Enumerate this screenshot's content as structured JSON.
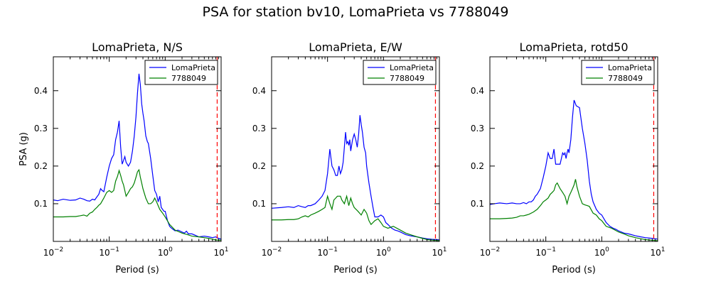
{
  "suptitle": "PSA for station bv10, LomaPrieta vs 7788049",
  "colors": {
    "s1": "#0000ff",
    "s2": "#008000",
    "marker": "#ff0000"
  },
  "chart_data": [
    {
      "type": "line",
      "title": "LomaPrieta, N/S",
      "xlabel": "Period (s)",
      "ylabel": "PSA (g)",
      "x_scale": "log",
      "xlim": [
        0.01,
        10
      ],
      "ylim": [
        0,
        0.49
      ],
      "xticks": [
        "10^-2",
        "10^-1",
        "10^0",
        "10^1"
      ],
      "yticks": [
        "0.1",
        "0.2",
        "0.3",
        "0.4"
      ],
      "vline": 8.5,
      "legend": "top-right",
      "series": [
        {
          "name": "LomaPrieta",
          "x": [
            0.01,
            0.012,
            0.015,
            0.02,
            0.025,
            0.03,
            0.035,
            0.04,
            0.045,
            0.05,
            0.055,
            0.06,
            0.065,
            0.07,
            0.075,
            0.08,
            0.09,
            0.1,
            0.11,
            0.12,
            0.13,
            0.14,
            0.15,
            0.16,
            0.17,
            0.18,
            0.19,
            0.2,
            0.22,
            0.24,
            0.26,
            0.28,
            0.3,
            0.32,
            0.34,
            0.36,
            0.38,
            0.4,
            0.42,
            0.45,
            0.48,
            0.5,
            0.55,
            0.6,
            0.65,
            0.7,
            0.75,
            0.8,
            0.85,
            0.9,
            0.95,
            1.0,
            1.1,
            1.2,
            1.3,
            1.5,
            1.7,
            2.0,
            2.2,
            2.4,
            2.6,
            3.0,
            3.5,
            4.0,
            5.0,
            6.0,
            7.0,
            8.0,
            9.0,
            10.0
          ],
          "y": [
            0.11,
            0.108,
            0.112,
            0.109,
            0.11,
            0.115,
            0.112,
            0.108,
            0.107,
            0.112,
            0.11,
            0.118,
            0.125,
            0.14,
            0.135,
            0.132,
            0.17,
            0.2,
            0.22,
            0.23,
            0.27,
            0.29,
            0.32,
            0.25,
            0.205,
            0.215,
            0.225,
            0.21,
            0.2,
            0.21,
            0.24,
            0.28,
            0.33,
            0.395,
            0.445,
            0.415,
            0.365,
            0.34,
            0.32,
            0.28,
            0.265,
            0.26,
            0.22,
            0.175,
            0.135,
            0.125,
            0.105,
            0.12,
            0.09,
            0.085,
            0.08,
            0.08,
            0.055,
            0.04,
            0.035,
            0.028,
            0.03,
            0.025,
            0.022,
            0.027,
            0.02,
            0.02,
            0.016,
            0.012,
            0.014,
            0.012,
            0.01,
            0.012,
            0.008,
            0.006
          ]
        },
        {
          "name": "7788049",
          "x": [
            0.01,
            0.015,
            0.02,
            0.025,
            0.03,
            0.035,
            0.04,
            0.045,
            0.05,
            0.055,
            0.06,
            0.065,
            0.07,
            0.08,
            0.09,
            0.1,
            0.11,
            0.12,
            0.13,
            0.14,
            0.15,
            0.16,
            0.17,
            0.18,
            0.2,
            0.22,
            0.24,
            0.26,
            0.28,
            0.3,
            0.32,
            0.34,
            0.36,
            0.38,
            0.4,
            0.45,
            0.5,
            0.55,
            0.6,
            0.65,
            0.7,
            0.8,
            0.9,
            1.0,
            1.2,
            1.5,
            2.0,
            2.5,
            3.0,
            4.0,
            5.0,
            6.0,
            7.0,
            8.0,
            10.0
          ],
          "y": [
            0.065,
            0.065,
            0.066,
            0.066,
            0.068,
            0.07,
            0.067,
            0.075,
            0.078,
            0.085,
            0.09,
            0.096,
            0.1,
            0.115,
            0.13,
            0.135,
            0.13,
            0.135,
            0.16,
            0.172,
            0.188,
            0.175,
            0.16,
            0.15,
            0.12,
            0.13,
            0.14,
            0.145,
            0.155,
            0.17,
            0.185,
            0.19,
            0.17,
            0.155,
            0.14,
            0.115,
            0.1,
            0.1,
            0.105,
            0.115,
            0.105,
            0.085,
            0.075,
            0.065,
            0.045,
            0.03,
            0.022,
            0.018,
            0.014,
            0.012,
            0.01,
            0.008,
            0.006,
            0.004,
            0.003
          ]
        }
      ]
    },
    {
      "type": "line",
      "title": "LomaPrieta, E/W",
      "xlabel": "Period (s)",
      "ylabel": "",
      "x_scale": "log",
      "xlim": [
        0.01,
        10
      ],
      "ylim": [
        0,
        0.49
      ],
      "xticks": [
        "10^-2",
        "10^-1",
        "10^0",
        "10^1"
      ],
      "yticks": [
        "0.1",
        "0.2",
        "0.3",
        "0.4"
      ],
      "vline": 8.5,
      "legend": "top-right",
      "series": [
        {
          "name": "LomaPrieta",
          "x": [
            0.01,
            0.015,
            0.02,
            0.025,
            0.03,
            0.035,
            0.04,
            0.045,
            0.05,
            0.06,
            0.07,
            0.08,
            0.09,
            0.1,
            0.11,
            0.12,
            0.13,
            0.14,
            0.15,
            0.16,
            0.17,
            0.18,
            0.19,
            0.2,
            0.21,
            0.22,
            0.23,
            0.24,
            0.25,
            0.26,
            0.28,
            0.3,
            0.32,
            0.34,
            0.36,
            0.38,
            0.4,
            0.42,
            0.45,
            0.48,
            0.5,
            0.55,
            0.6,
            0.65,
            0.7,
            0.8,
            0.9,
            1.0,
            1.1,
            1.2,
            1.4,
            1.6,
            1.8,
            2.0,
            2.5,
            3.0,
            4.0,
            5.0,
            6.0,
            8.0,
            10.0
          ],
          "y": [
            0.088,
            0.09,
            0.092,
            0.09,
            0.095,
            0.092,
            0.09,
            0.095,
            0.095,
            0.1,
            0.11,
            0.12,
            0.135,
            0.18,
            0.245,
            0.2,
            0.19,
            0.175,
            0.175,
            0.2,
            0.18,
            0.19,
            0.21,
            0.25,
            0.29,
            0.26,
            0.265,
            0.255,
            0.27,
            0.24,
            0.27,
            0.285,
            0.27,
            0.25,
            0.285,
            0.335,
            0.31,
            0.29,
            0.25,
            0.235,
            0.2,
            0.155,
            0.12,
            0.09,
            0.065,
            0.065,
            0.07,
            0.065,
            0.05,
            0.045,
            0.035,
            0.03,
            0.028,
            0.025,
            0.018,
            0.015,
            0.012,
            0.009,
            0.007,
            0.005,
            0.004
          ]
        },
        {
          "name": "7788049",
          "x": [
            0.01,
            0.015,
            0.02,
            0.025,
            0.03,
            0.035,
            0.04,
            0.045,
            0.05,
            0.06,
            0.07,
            0.08,
            0.09,
            0.1,
            0.11,
            0.12,
            0.13,
            0.14,
            0.15,
            0.17,
            0.18,
            0.2,
            0.22,
            0.24,
            0.26,
            0.28,
            0.3,
            0.35,
            0.4,
            0.45,
            0.5,
            0.55,
            0.6,
            0.7,
            0.8,
            0.9,
            1.0,
            1.2,
            1.5,
            2.0,
            2.5,
            3.0,
            4.0,
            5.0,
            6.0,
            8.0,
            10.0
          ],
          "y": [
            0.057,
            0.057,
            0.058,
            0.058,
            0.06,
            0.065,
            0.068,
            0.065,
            0.07,
            0.075,
            0.08,
            0.085,
            0.09,
            0.12,
            0.1,
            0.085,
            0.11,
            0.115,
            0.12,
            0.12,
            0.11,
            0.1,
            0.12,
            0.095,
            0.115,
            0.1,
            0.09,
            0.08,
            0.07,
            0.085,
            0.075,
            0.055,
            0.045,
            0.055,
            0.06,
            0.05,
            0.04,
            0.035,
            0.04,
            0.03,
            0.022,
            0.018,
            0.012,
            0.008,
            0.005,
            0.003,
            0.002
          ]
        }
      ]
    },
    {
      "type": "line",
      "title": "LomaPrieta, rotd50",
      "xlabel": "Period (s)",
      "ylabel": "",
      "x_scale": "log",
      "xlim": [
        0.01,
        10
      ],
      "ylim": [
        0,
        0.49
      ],
      "xticks": [
        "10^-2",
        "10^-1",
        "10^0",
        "10^1"
      ],
      "yticks": [
        "0.1",
        "0.2",
        "0.3",
        "0.4"
      ],
      "vline": 8.5,
      "legend": "top-right",
      "series": [
        {
          "name": "LomaPrieta",
          "x": [
            0.01,
            0.012,
            0.015,
            0.02,
            0.025,
            0.03,
            0.035,
            0.04,
            0.045,
            0.05,
            0.055,
            0.06,
            0.065,
            0.07,
            0.08,
            0.09,
            0.1,
            0.11,
            0.12,
            0.13,
            0.14,
            0.15,
            0.16,
            0.18,
            0.2,
            0.21,
            0.22,
            0.23,
            0.24,
            0.25,
            0.26,
            0.28,
            0.3,
            0.32,
            0.35,
            0.4,
            0.45,
            0.5,
            0.55,
            0.6,
            0.65,
            0.7,
            0.8,
            0.9,
            1.0,
            1.2,
            1.4,
            1.6,
            1.8,
            2.0,
            2.5,
            3.0,
            4.0,
            5.0,
            6.0,
            8.0,
            10.0
          ],
          "y": [
            0.098,
            0.1,
            0.102,
            0.1,
            0.102,
            0.1,
            0.1,
            0.103,
            0.1,
            0.105,
            0.105,
            0.11,
            0.12,
            0.125,
            0.14,
            0.17,
            0.2,
            0.235,
            0.22,
            0.22,
            0.245,
            0.205,
            0.205,
            0.205,
            0.235,
            0.23,
            0.235,
            0.22,
            0.235,
            0.245,
            0.235,
            0.27,
            0.33,
            0.375,
            0.36,
            0.355,
            0.3,
            0.26,
            0.215,
            0.16,
            0.125,
            0.105,
            0.085,
            0.075,
            0.07,
            0.05,
            0.04,
            0.035,
            0.032,
            0.028,
            0.022,
            0.02,
            0.015,
            0.012,
            0.01,
            0.008,
            0.006
          ]
        },
        {
          "name": "7788049",
          "x": [
            0.01,
            0.015,
            0.02,
            0.025,
            0.03,
            0.035,
            0.04,
            0.045,
            0.05,
            0.06,
            0.07,
            0.08,
            0.09,
            0.1,
            0.11,
            0.12,
            0.13,
            0.14,
            0.15,
            0.16,
            0.18,
            0.2,
            0.22,
            0.24,
            0.26,
            0.28,
            0.3,
            0.32,
            0.34,
            0.36,
            0.4,
            0.45,
            0.5,
            0.55,
            0.6,
            0.7,
            0.8,
            0.9,
            1.0,
            1.2,
            1.5,
            2.0,
            2.5,
            3.0,
            4.0,
            5.0,
            6.0,
            8.0,
            10.0
          ],
          "y": [
            0.06,
            0.06,
            0.061,
            0.062,
            0.064,
            0.068,
            0.068,
            0.07,
            0.072,
            0.078,
            0.085,
            0.095,
            0.105,
            0.11,
            0.115,
            0.125,
            0.13,
            0.135,
            0.15,
            0.155,
            0.14,
            0.13,
            0.12,
            0.1,
            0.12,
            0.13,
            0.14,
            0.15,
            0.165,
            0.145,
            0.12,
            0.1,
            0.097,
            0.095,
            0.093,
            0.075,
            0.07,
            0.06,
            0.055,
            0.04,
            0.035,
            0.025,
            0.02,
            0.015,
            0.01,
            0.007,
            0.005,
            0.003,
            0.002
          ]
        }
      ]
    }
  ]
}
